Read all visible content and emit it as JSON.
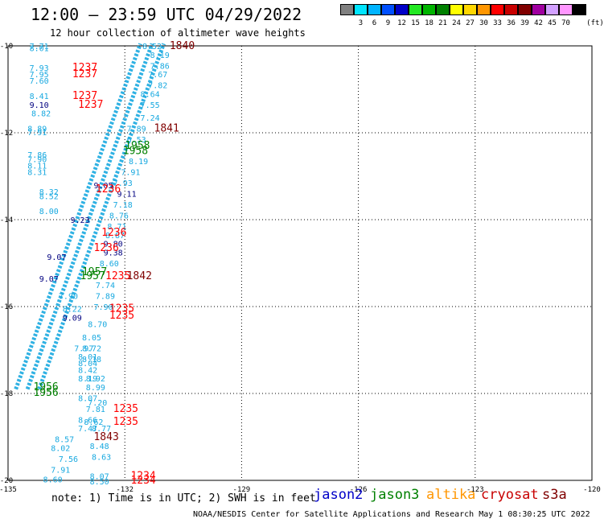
{
  "title": "12:00 — 23:59 UTC 04/29/2022",
  "subtitle": "12 hour collection of altimeter wave heights",
  "colorbar": {
    "unit": "(ft)",
    "entries": [
      {
        "label": "",
        "color": "#808080"
      },
      {
        "label": "3",
        "color": "#00e5ff"
      },
      {
        "label": "6",
        "color": "#00b4ff"
      },
      {
        "label": "9",
        "color": "#0050ff"
      },
      {
        "label": "12",
        "color": "#0000c8"
      },
      {
        "label": "15",
        "color": "#22e822"
      },
      {
        "label": "18",
        "color": "#00b400"
      },
      {
        "label": "21",
        "color": "#008000"
      },
      {
        "label": "24",
        "color": "#ffff00"
      },
      {
        "label": "27",
        "color": "#ffd700"
      },
      {
        "label": "30",
        "color": "#ff9600"
      },
      {
        "label": "33",
        "color": "#ff0000"
      },
      {
        "label": "36",
        "color": "#c80000"
      },
      {
        "label": "39",
        "color": "#800000"
      },
      {
        "label": "42",
        "color": "#a000a0"
      },
      {
        "label": "45",
        "color": "#d2a0ff"
      },
      {
        "label": "70",
        "color": "#ff96ff"
      },
      {
        "label": "",
        "color": "#000000"
      }
    ]
  },
  "map": {
    "lon_range": [
      -135,
      -120
    ],
    "lat_range": [
      -20,
      -10
    ],
    "lon_ticks": [
      "-135",
      "-132",
      "-129",
      "-126",
      "-123",
      "-120"
    ],
    "lat_ticks": [
      "-10",
      "-12",
      "-14",
      "-16",
      "-18",
      "-20"
    ],
    "track_color": "#19a9e0",
    "tracks": [
      {
        "start": [
          -134.8,
          -17.9
        ],
        "end": [
          -131.6,
          -9.95
        ]
      },
      {
        "start": [
          -134.5,
          -17.9
        ],
        "end": [
          -131.3,
          -9.95
        ]
      },
      {
        "start": [
          -134.2,
          -17.9
        ],
        "end": [
          -131.0,
          -9.95
        ]
      }
    ],
    "values": [
      {
        "text": "7.71",
        "lon": -134.45,
        "lat": -10.0,
        "color": "#19a9e0"
      },
      {
        "text": "8.01",
        "lon": -134.45,
        "lat": -10.05,
        "color": "#19a9e0"
      },
      {
        "text": "7.93",
        "lon": -134.45,
        "lat": -10.5,
        "color": "#19a9e0"
      },
      {
        "text": "7.95",
        "lon": -134.45,
        "lat": -10.65,
        "color": "#19a9e0"
      },
      {
        "text": "7.60",
        "lon": -134.45,
        "lat": -10.8,
        "color": "#19a9e0"
      },
      {
        "text": "8.41",
        "lon": -134.45,
        "lat": -11.15,
        "color": "#19a9e0"
      },
      {
        "text": "9.10",
        "lon": -134.45,
        "lat": -11.35,
        "color": "#000080"
      },
      {
        "text": "8.82",
        "lon": -134.4,
        "lat": -11.55,
        "color": "#19a9e0"
      },
      {
        "text": "8.89",
        "lon": -134.5,
        "lat": -11.9,
        "color": "#19a9e0"
      },
      {
        "text": "7.91",
        "lon": -134.5,
        "lat": -11.98,
        "color": "#19a9e0"
      },
      {
        "text": "7.86",
        "lon": -134.5,
        "lat": -12.5,
        "color": "#19a9e0"
      },
      {
        "text": "7.90",
        "lon": -134.5,
        "lat": -12.6,
        "color": "#19a9e0"
      },
      {
        "text": "8.11",
        "lon": -134.5,
        "lat": -12.75,
        "color": "#19a9e0"
      },
      {
        "text": "8.31",
        "lon": -134.5,
        "lat": -12.9,
        "color": "#19a9e0"
      },
      {
        "text": "8.32",
        "lon": -134.2,
        "lat": -13.35,
        "color": "#19a9e0"
      },
      {
        "text": "8.52",
        "lon": -134.2,
        "lat": -13.45,
        "color": "#19a9e0"
      },
      {
        "text": "8.00",
        "lon": -134.2,
        "lat": -13.8,
        "color": "#19a9e0"
      },
      {
        "text": "9.23",
        "lon": -133.4,
        "lat": -14.0,
        "color": "#000080"
      },
      {
        "text": "9.07",
        "lon": -134.0,
        "lat": -14.85,
        "color": "#000080"
      },
      {
        "text": "9.07",
        "lon": -134.2,
        "lat": -15.35,
        "color": "#000080"
      },
      {
        "text": "7.90",
        "lon": -133.7,
        "lat": -15.75,
        "color": "#19a9e0"
      },
      {
        "text": "8.22",
        "lon": -133.6,
        "lat": -16.05,
        "color": "#19a9e0"
      },
      {
        "text": "9.09",
        "lon": -133.6,
        "lat": -16.25,
        "color": "#000080"
      },
      {
        "text": "7.97",
        "lon": -133.3,
        "lat": -16.95,
        "color": "#19a9e0"
      },
      {
        "text": "8.01",
        "lon": -133.2,
        "lat": -17.15,
        "color": "#19a9e0"
      },
      {
        "text": "8.04",
        "lon": -133.2,
        "lat": -17.3,
        "color": "#19a9e0"
      },
      {
        "text": "8.42",
        "lon": -133.2,
        "lat": -17.45,
        "color": "#19a9e0"
      },
      {
        "text": "8.19",
        "lon": -133.2,
        "lat": -17.65,
        "color": "#19a9e0"
      },
      {
        "text": "8.99",
        "lon": -133.0,
        "lat": -17.85,
        "color": "#19a9e0"
      },
      {
        "text": "8.07",
        "lon": -133.2,
        "lat": -18.1,
        "color": "#19a9e0"
      },
      {
        "text": "7.81",
        "lon": -133.0,
        "lat": -18.35,
        "color": "#19a9e0"
      },
      {
        "text": "8.66",
        "lon": -133.2,
        "lat": -18.6,
        "color": "#19a9e0"
      },
      {
        "text": "7.47",
        "lon": -133.2,
        "lat": -18.8,
        "color": "#19a9e0"
      },
      {
        "text": "8.57",
        "lon": -133.8,
        "lat": -19.05,
        "color": "#19a9e0"
      },
      {
        "text": "8.02",
        "lon": -133.9,
        "lat": -19.25,
        "color": "#19a9e0"
      },
      {
        "text": "7.56",
        "lon": -133.7,
        "lat": -19.5,
        "color": "#19a9e0"
      },
      {
        "text": "7.91",
        "lon": -133.9,
        "lat": -19.75,
        "color": "#19a9e0"
      },
      {
        "text": "8.60",
        "lon": -134.1,
        "lat": -19.97,
        "color": "#19a9e0"
      },
      {
        "text": "8.52",
        "lon": -131.55,
        "lat": -10.0,
        "color": "#19a9e0"
      },
      {
        "text": "8.19",
        "lon": -131.35,
        "lat": -10.2,
        "color": "#19a9e0"
      },
      {
        "text": "7.86",
        "lon": -131.35,
        "lat": -10.45,
        "color": "#19a9e0"
      },
      {
        "text": "7.67",
        "lon": -131.4,
        "lat": -10.65,
        "color": "#19a9e0"
      },
      {
        "text": "7.82",
        "lon": -131.4,
        "lat": -10.9,
        "color": "#19a9e0"
      },
      {
        "text": "8.64",
        "lon": -131.6,
        "lat": -11.1,
        "color": "#19a9e0"
      },
      {
        "text": "7.55",
        "lon": -131.6,
        "lat": -11.35,
        "color": "#19a9e0"
      },
      {
        "text": "7.24",
        "lon": -131.6,
        "lat": -11.65,
        "color": "#19a9e0"
      },
      {
        "text": "7.89",
        "lon": -131.95,
        "lat": -11.9,
        "color": "#19a9e0"
      },
      {
        "text": "6.53",
        "lon": -131.95,
        "lat": -12.15,
        "color": "#19a9e0"
      },
      {
        "text": "8.19",
        "lon": -131.9,
        "lat": -12.65,
        "color": "#19a9e0"
      },
      {
        "text": "7.91",
        "lon": -132.1,
        "lat": -12.9,
        "color": "#19a9e0"
      },
      {
        "text": "7.93",
        "lon": -132.3,
        "lat": -13.15,
        "color": "#19a9e0"
      },
      {
        "text": "9.11",
        "lon": -132.2,
        "lat": -13.4,
        "color": "#000080"
      },
      {
        "text": "7.18",
        "lon": -132.3,
        "lat": -13.65,
        "color": "#19a9e0"
      },
      {
        "text": "8.76",
        "lon": -132.4,
        "lat": -13.9,
        "color": "#19a9e0"
      },
      {
        "text": "8.71",
        "lon": -132.45,
        "lat": -14.15,
        "color": "#19a9e0"
      },
      {
        "text": "8.87",
        "lon": -132.5,
        "lat": -14.35,
        "color": "#19a9e0"
      },
      {
        "text": "9.80",
        "lon": -132.55,
        "lat": -14.55,
        "color": "#000080"
      },
      {
        "text": "9.38",
        "lon": -132.55,
        "lat": -14.75,
        "color": "#000080"
      },
      {
        "text": "8.60",
        "lon": -132.65,
        "lat": -15.0,
        "color": "#19a9e0"
      },
      {
        "text": "7.74",
        "lon": -132.75,
        "lat": -15.5,
        "color": "#19a9e0"
      },
      {
        "text": "7.89",
        "lon": -132.75,
        "lat": -15.75,
        "color": "#19a9e0"
      },
      {
        "text": "7.90",
        "lon": -132.8,
        "lat": -16.0,
        "color": "#19a9e0"
      },
      {
        "text": "8.70",
        "lon": -132.95,
        "lat": -16.4,
        "color": "#19a9e0"
      },
      {
        "text": "8.05",
        "lon": -133.1,
        "lat": -16.7,
        "color": "#19a9e0"
      },
      {
        "text": "8.72",
        "lon": -133.1,
        "lat": -16.95,
        "color": "#19a9e0"
      },
      {
        "text": "8.18",
        "lon": -133.1,
        "lat": -17.2,
        "color": "#19a9e0"
      },
      {
        "text": "8.92",
        "lon": -133.0,
        "lat": -17.65,
        "color": "#19a9e0"
      },
      {
        "text": "7.20",
        "lon": -132.95,
        "lat": -18.2,
        "color": "#19a9e0"
      },
      {
        "text": "8.62",
        "lon": -133.05,
        "lat": -18.65,
        "color": "#19a9e0"
      },
      {
        "text": "8.77",
        "lon": -132.85,
        "lat": -18.8,
        "color": "#19a9e0"
      },
      {
        "text": "8.48",
        "lon": -132.9,
        "lat": -19.2,
        "color": "#19a9e0"
      },
      {
        "text": "8.63",
        "lon": -132.85,
        "lat": -19.45,
        "color": "#19a9e0"
      },
      {
        "text": "8.07",
        "lon": -132.9,
        "lat": -19.9,
        "color": "#19a9e0"
      },
      {
        "text": "8.50",
        "lon": -132.9,
        "lat": -20.02,
        "color": "#19a9e0"
      },
      {
        "text": "9.05",
        "lon": -132.8,
        "lat": -13.2,
        "color": "#000080"
      },
      {
        "text": "1237",
        "lon": -133.35,
        "lat": -10.5,
        "color": "#ff0000",
        "size": 13
      },
      {
        "text": "1237",
        "lon": -133.35,
        "lat": -10.65,
        "color": "#ff0000",
        "size": 13
      },
      {
        "text": "1237",
        "lon": -133.35,
        "lat": -11.15,
        "color": "#ff0000",
        "size": 13
      },
      {
        "text": "1237",
        "lon": -133.2,
        "lat": -11.35,
        "color": "#ff0000",
        "size": 13
      },
      {
        "text": "1236",
        "lon": -132.75,
        "lat": -13.3,
        "color": "#ff0000",
        "size": 13
      },
      {
        "text": "1236",
        "lon": -132.6,
        "lat": -14.3,
        "color": "#ff0000",
        "size": 13
      },
      {
        "text": "1236",
        "lon": -132.8,
        "lat": -14.65,
        "color": "#ff0000",
        "size": 13
      },
      {
        "text": "1235",
        "lon": -132.5,
        "lat": -15.3,
        "color": "#ff0000",
        "size": 13
      },
      {
        "text": "1235",
        "lon": -132.4,
        "lat": -16.05,
        "color": "#ff0000",
        "size": 13
      },
      {
        "text": "1235",
        "lon": -132.4,
        "lat": -16.2,
        "color": "#ff0000",
        "size": 13
      },
      {
        "text": "1235",
        "lon": -132.3,
        "lat": -18.35,
        "color": "#ff0000",
        "size": 13
      },
      {
        "text": "1235",
        "lon": -132.3,
        "lat": -18.65,
        "color": "#ff0000",
        "size": 13
      },
      {
        "text": "1234",
        "lon": -131.85,
        "lat": -19.9,
        "color": "#ff0000",
        "size": 13
      },
      {
        "text": "1234",
        "lon": -131.85,
        "lat": -20.0,
        "color": "#ff0000",
        "size": 13
      },
      {
        "text": "1840",
        "lon": -130.85,
        "lat": -10.0,
        "color": "#800000",
        "size": 13
      },
      {
        "text": "1841",
        "lon": -131.25,
        "lat": -11.9,
        "color": "#800000",
        "size": 13
      },
      {
        "text": "1842",
        "lon": -131.95,
        "lat": -15.3,
        "color": "#800000",
        "size": 13
      },
      {
        "text": "1843",
        "lon": -132.8,
        "lat": -19.0,
        "color": "#800000",
        "size": 13
      },
      {
        "text": "1958",
        "lon": -132.0,
        "lat": -12.3,
        "color": "#008000",
        "size": 13
      },
      {
        "text": "1958",
        "lon": -132.05,
        "lat": -12.42,
        "color": "#008000",
        "size": 13
      },
      {
        "text": "1957",
        "lon": -133.1,
        "lat": -15.2,
        "color": "#008000",
        "size": 13
      },
      {
        "text": "1957",
        "lon": -133.15,
        "lat": -15.3,
        "color": "#008000",
        "size": 13
      },
      {
        "text": "1956",
        "lon": -134.35,
        "lat": -17.85,
        "color": "#008000",
        "size": 13
      },
      {
        "text": "1956",
        "lon": -134.35,
        "lat": -17.98,
        "color": "#008000",
        "size": 13
      }
    ]
  },
  "note": "note: 1) Time is in UTC; 2) SWH is in feet",
  "legend": [
    {
      "label": "jason2",
      "color": "#0000c8"
    },
    {
      "label": "jason3",
      "color": "#008000"
    },
    {
      "label": "altika",
      "color": "#ff9600"
    },
    {
      "label": "cryosat",
      "color": "#c80000"
    },
    {
      "label": "s3a",
      "color": "#800000"
    }
  ],
  "footer": "NOAA/NESDIS Center for Satellite Applications and Research    May  1 08:30:25 UTC 2022"
}
